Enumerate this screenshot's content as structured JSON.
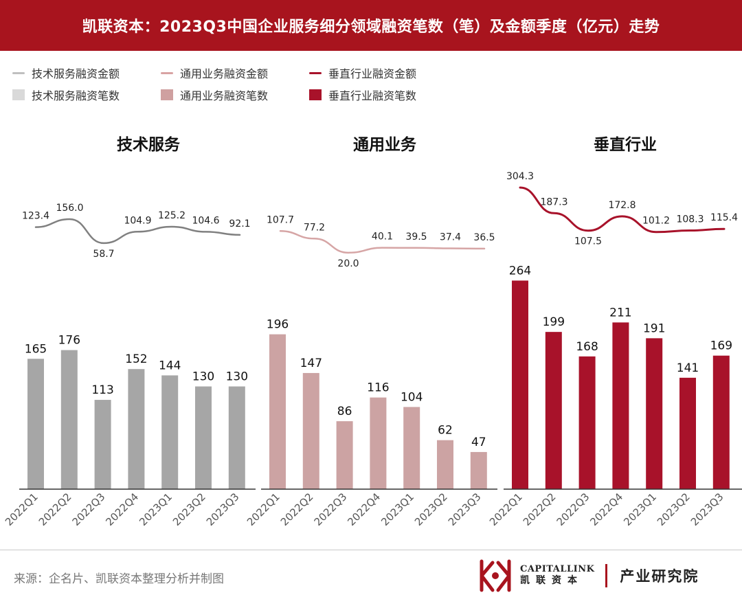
{
  "header": {
    "title": "凯联资本：2023Q3中国企业服务细分领域融资笔数（笔）及金额季度（亿元）走势"
  },
  "legend": {
    "rows": [
      [
        {
          "label": "技术服务融资金额",
          "kind": "line",
          "color": "#bfbfbf"
        },
        {
          "label": "通用业务融资金额",
          "kind": "line",
          "color": "#d8a3a3"
        },
        {
          "label": "垂直行业融资金额",
          "kind": "line",
          "color": "#a8122a"
        }
      ],
      [
        {
          "label": "技术服务融资笔数",
          "kind": "bar",
          "color": "#d9d9d9"
        },
        {
          "label": "通用业务融资笔数",
          "kind": "bar",
          "color": "#cfa0a0"
        },
        {
          "label": "垂直行业融资笔数",
          "kind": "bar",
          "color": "#a8122a"
        }
      ]
    ]
  },
  "chart_data": [
    {
      "type": "bar+line",
      "title": "技术服务",
      "categories": [
        "2022Q1",
        "2022Q2",
        "2022Q3",
        "2022Q4",
        "2023Q1",
        "2023Q2",
        "2023Q3"
      ],
      "series": [
        {
          "name": "技术服务融资笔数",
          "kind": "bar",
          "values": [
            165,
            176,
            113,
            152,
            144,
            130,
            130
          ],
          "color": "#a6a6a6"
        },
        {
          "name": "技术服务融资金额",
          "kind": "line",
          "values": [
            123.4,
            156.0,
            58.7,
            104.9,
            125.2,
            104.6,
            92.1
          ],
          "labels": [
            "123.4",
            "156.0",
            "58.7",
            "104.9",
            "125.2",
            "104.6",
            "92.1"
          ],
          "color": "#808080"
        }
      ]
    },
    {
      "type": "bar+line",
      "title": "通用业务",
      "categories": [
        "2022Q1",
        "2022Q2",
        "2022Q3",
        "2022Q4",
        "2023Q1",
        "2023Q2",
        "2023Q3"
      ],
      "series": [
        {
          "name": "通用业务融资笔数",
          "kind": "bar",
          "values": [
            196,
            147,
            86,
            116,
            104,
            62,
            47
          ],
          "color": "#cca3a3"
        },
        {
          "name": "通用业务融资金额",
          "kind": "line",
          "values": [
            107.7,
            77.2,
            20.0,
            40.1,
            39.5,
            37.4,
            36.5
          ],
          "labels": [
            "107.7",
            "77.2",
            "20.0",
            "40.1",
            "39.5",
            "37.4",
            "36.5"
          ],
          "color": "#d6a5a5"
        }
      ]
    },
    {
      "type": "bar+line",
      "title": "垂直行业",
      "categories": [
        "2022Q1",
        "2022Q2",
        "2022Q3",
        "2022Q4",
        "2023Q1",
        "2023Q2",
        "2023Q3"
      ],
      "series": [
        {
          "name": "垂直行业融资笔数",
          "kind": "bar",
          "values": [
            264,
            199,
            168,
            211,
            191,
            141,
            169
          ],
          "color": "#a8122a"
        },
        {
          "name": "垂直行业融资金额",
          "kind": "line",
          "values": [
            304.3,
            187.3,
            107.5,
            172.8,
            101.2,
            108.3,
            115.4
          ],
          "labels": [
            "304.3",
            "187.3",
            "107.5",
            "172.8",
            "101.2",
            "108.3",
            "115.4"
          ],
          "color": "#a8122a"
        }
      ]
    }
  ],
  "footer": {
    "source": "来源：企名片、凯联资本整理分析并制图",
    "logo_en": "CAPITALLINK",
    "logo_cn": "凯联资本",
    "institute": "产业研究院"
  }
}
